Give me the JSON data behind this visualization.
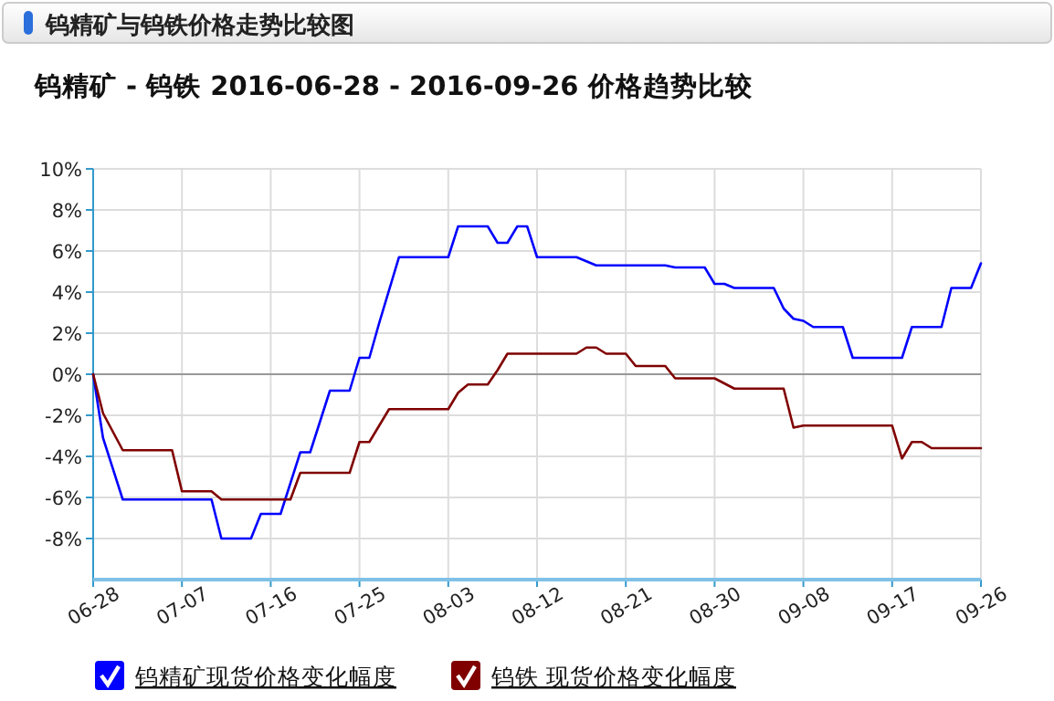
{
  "chart_data": {
    "type": "line",
    "title": "钨精矿与钨铁价格走势比较图",
    "subtitle": "钨精矿 - 钨铁 2016-06-28 - 2016-09-26 价格趋势比较",
    "xlim": [
      "2016-06-28",
      "2016-09-26"
    ],
    "xticks": [
      {
        "value": "2016-06-28",
        "label": "06-28"
      },
      {
        "value": "2016-07-07",
        "label": "07-07"
      },
      {
        "value": "2016-07-16",
        "label": "07-16"
      },
      {
        "value": "2016-07-25",
        "label": "07-25"
      },
      {
        "value": "2016-08-03",
        "label": "08-03"
      },
      {
        "value": "2016-08-12",
        "label": "08-12"
      },
      {
        "value": "2016-08-21",
        "label": "08-21"
      },
      {
        "value": "2016-08-30",
        "label": "08-30"
      },
      {
        "value": "2016-09-08",
        "label": "09-08"
      },
      {
        "value": "2016-09-17",
        "label": "09-17"
      },
      {
        "value": "2016-09-26",
        "label": "09-26"
      }
    ],
    "ylim": [
      -10,
      10
    ],
    "yticks": [
      {
        "value": -8,
        "label": "-8%"
      },
      {
        "value": -6,
        "label": "-6%"
      },
      {
        "value": -4,
        "label": "-4%"
      },
      {
        "value": -2,
        "label": "-2%"
      },
      {
        "value": 0,
        "label": "0%"
      },
      {
        "value": 2,
        "label": "2%"
      },
      {
        "value": 4,
        "label": "4%"
      },
      {
        "value": 6,
        "label": "6%"
      },
      {
        "value": 8,
        "label": "8%"
      },
      {
        "value": 10,
        "label": "10%"
      }
    ],
    "grid": true,
    "legend": "bottom",
    "marker": "none",
    "line_style": "solid",
    "ref_lines": [
      {
        "axis": "y",
        "value": 0,
        "color": "#999999"
      }
    ],
    "series": [
      {
        "name": "钨精矿现货价格变化幅度",
        "color": "#0000ff",
        "x": [
          "2016-06-28",
          "2016-06-29",
          "2016-07-01",
          "2016-07-10",
          "2016-07-11",
          "2016-07-14",
          "2016-07-15",
          "2016-07-17",
          "2016-07-19",
          "2016-07-20",
          "2016-07-22",
          "2016-07-24",
          "2016-07-25",
          "2016-07-26",
          "2016-07-27",
          "2016-07-29",
          "2016-08-03",
          "2016-08-04",
          "2016-08-07",
          "2016-08-08",
          "2016-08-09",
          "2016-08-10",
          "2016-08-11",
          "2016-08-12",
          "2016-08-16",
          "2016-08-18",
          "2016-08-25",
          "2016-08-26",
          "2016-08-29",
          "2016-08-30",
          "2016-08-31",
          "2016-09-01",
          "2016-09-05",
          "2016-09-06",
          "2016-09-07",
          "2016-09-08",
          "2016-09-09",
          "2016-09-12",
          "2016-09-13",
          "2016-09-18",
          "2016-09-19",
          "2016-09-22",
          "2016-09-23",
          "2016-09-25",
          "2016-09-26"
        ],
        "values": [
          0,
          -3.1,
          -6.1,
          -6.1,
          -8.0,
          -8.0,
          -6.8,
          -6.8,
          -3.8,
          -3.8,
          -0.8,
          -0.8,
          0.8,
          0.8,
          2.5,
          5.7,
          5.7,
          7.2,
          7.2,
          6.4,
          6.4,
          7.2,
          7.2,
          5.7,
          5.7,
          5.3,
          5.3,
          5.2,
          5.2,
          4.4,
          4.4,
          4.2,
          4.2,
          3.2,
          2.7,
          2.6,
          2.3,
          2.3,
          0.8,
          0.8,
          2.3,
          2.3,
          4.2,
          4.2,
          5.4
        ]
      },
      {
        "name": "钨铁 现货价格变化幅度",
        "color": "#800000",
        "x": [
          "2016-06-28",
          "2016-06-29",
          "2016-07-01",
          "2016-07-06",
          "2016-07-07",
          "2016-07-10",
          "2016-07-11",
          "2016-07-18",
          "2016-07-19",
          "2016-07-24",
          "2016-07-25",
          "2016-07-26",
          "2016-07-28",
          "2016-08-03",
          "2016-08-04",
          "2016-08-05",
          "2016-08-07",
          "2016-08-08",
          "2016-08-09",
          "2016-08-16",
          "2016-08-17",
          "2016-08-18",
          "2016-08-19",
          "2016-08-21",
          "2016-08-22",
          "2016-08-25",
          "2016-08-26",
          "2016-08-30",
          "2016-09-01",
          "2016-09-06",
          "2016-09-07",
          "2016-09-08",
          "2016-09-17",
          "2016-09-18",
          "2016-09-19",
          "2016-09-20",
          "2016-09-21",
          "2016-09-26"
        ],
        "values": [
          0,
          -1.9,
          -3.7,
          -3.7,
          -5.7,
          -5.7,
          -6.1,
          -6.1,
          -4.8,
          -4.8,
          -3.3,
          -3.3,
          -1.7,
          -1.7,
          -0.9,
          -0.5,
          -0.5,
          0.2,
          1.0,
          1.0,
          1.3,
          1.3,
          1.0,
          1.0,
          0.4,
          0.4,
          -0.2,
          -0.2,
          -0.7,
          -0.7,
          -2.6,
          -2.5,
          -2.5,
          -4.1,
          -3.3,
          -3.3,
          -3.6,
          -3.6
        ]
      }
    ]
  }
}
